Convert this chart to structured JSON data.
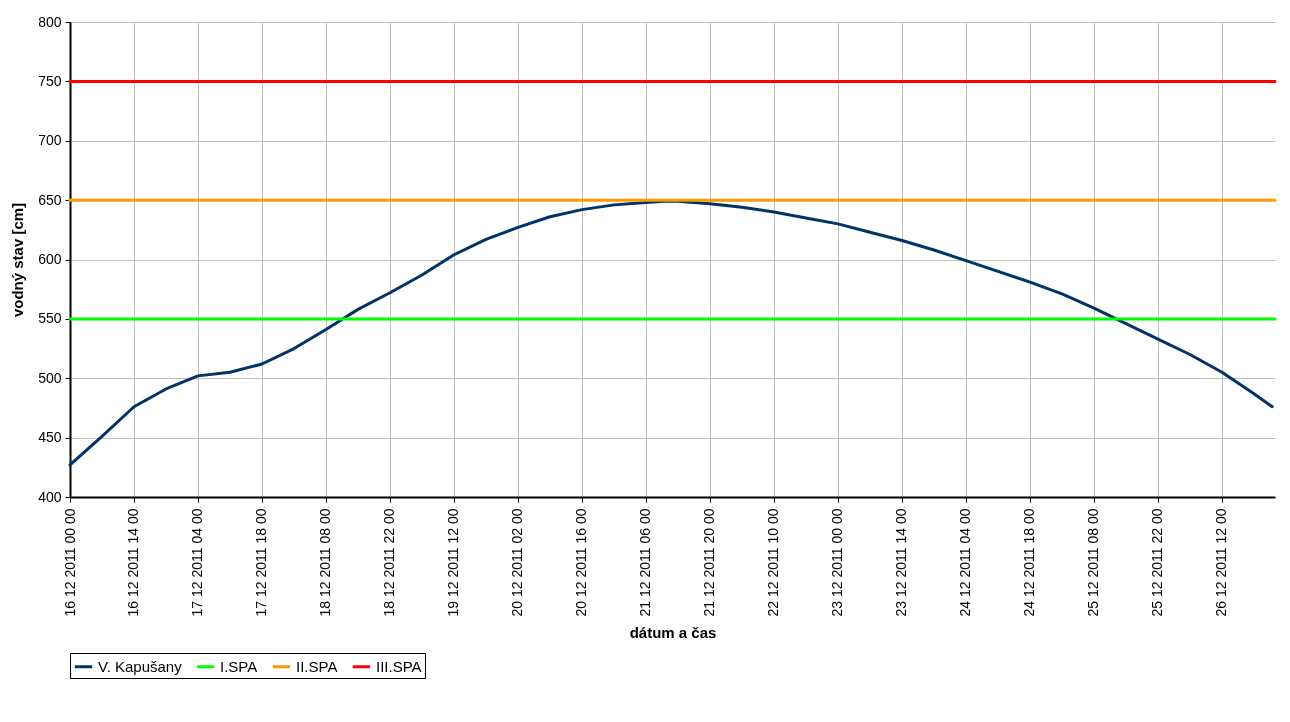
{
  "chart_data": {
    "type": "line",
    "xlabel": "dátum a čas",
    "ylabel": "vodný stav [cm]",
    "xlim": [
      "2011-12-16T00:00",
      "2011-12-26T23:36"
    ],
    "xticks": [
      {
        "value": "2011-12-16T00:00",
        "label": "16 12 2011 00 00"
      },
      {
        "value": "2011-12-16T14:00",
        "label": "16 12 2011 14 00"
      },
      {
        "value": "2011-12-17T04:00",
        "label": "17 12 2011 04 00"
      },
      {
        "value": "2011-12-17T18:00",
        "label": "17 12 2011 18 00"
      },
      {
        "value": "2011-12-18T08:00",
        "label": "18 12 2011 08 00"
      },
      {
        "value": "2011-12-18T22:00",
        "label": "18 12 2011 22 00"
      },
      {
        "value": "2011-12-19T12:00",
        "label": "19 12 2011 12 00"
      },
      {
        "value": "2011-12-20T02:00",
        "label": "20 12 2011 02 00"
      },
      {
        "value": "2011-12-20T16:00",
        "label": "20 12 2011 16 00"
      },
      {
        "value": "2011-12-21T06:00",
        "label": "21 12 2011 06 00"
      },
      {
        "value": "2011-12-21T20:00",
        "label": "21 12 2011 20 00"
      },
      {
        "value": "2011-12-22T10:00",
        "label": "22 12 2011 10 00"
      },
      {
        "value": "2011-12-23T00:00",
        "label": "23 12 2011 00 00"
      },
      {
        "value": "2011-12-23T14:00",
        "label": "23 12 2011 14 00"
      },
      {
        "value": "2011-12-24T04:00",
        "label": "24 12 2011 04 00"
      },
      {
        "value": "2011-12-24T18:00",
        "label": "24 12 2011 18 00"
      },
      {
        "value": "2011-12-25T08:00",
        "label": "25 12 2011 08 00"
      },
      {
        "value": "2011-12-25T22:00",
        "label": "25 12 2011 22 00"
      },
      {
        "value": "2011-12-26T12:00",
        "label": "26 12 2011 12 00"
      }
    ],
    "ylim": [
      400,
      800
    ],
    "yticks": [
      400,
      450,
      500,
      550,
      600,
      650,
      700,
      750,
      800
    ],
    "grid": true,
    "legend": "bottom",
    "series": [
      {
        "name": "V. Kapušany",
        "color": "#003366",
        "x": [
          "2011-12-16T00:00",
          "2011-12-16T07:00",
          "2011-12-16T14:00",
          "2011-12-16T21:00",
          "2011-12-17T04:00",
          "2011-12-17T11:00",
          "2011-12-17T18:00",
          "2011-12-18T01:00",
          "2011-12-18T08:00",
          "2011-12-18T15:00",
          "2011-12-18T22:00",
          "2011-12-19T05:00",
          "2011-12-19T12:00",
          "2011-12-19T19:00",
          "2011-12-20T02:00",
          "2011-12-20T09:00",
          "2011-12-20T16:00",
          "2011-12-20T23:00",
          "2011-12-21T06:00",
          "2011-12-21T10:00",
          "2011-12-21T13:00",
          "2011-12-21T20:00",
          "2011-12-22T03:00",
          "2011-12-22T10:00",
          "2011-12-22T17:00",
          "2011-12-23T00:00",
          "2011-12-23T07:00",
          "2011-12-23T14:00",
          "2011-12-23T21:00",
          "2011-12-24T04:00",
          "2011-12-24T11:00",
          "2011-12-24T18:00",
          "2011-12-25T01:00",
          "2011-12-25T08:00",
          "2011-12-25T15:00",
          "2011-12-25T22:00",
          "2011-12-26T05:00",
          "2011-12-26T12:00",
          "2011-12-26T19:00",
          "2011-12-26T23:00"
        ],
        "values": [
          427,
          451,
          476,
          491,
          502,
          505,
          512,
          525,
          541,
          558,
          572,
          587,
          604,
          617,
          627,
          636,
          642,
          646,
          648,
          649,
          649,
          647,
          644,
          640,
          635,
          630,
          623,
          616,
          608,
          599,
          590,
          581,
          571,
          559,
          546,
          533,
          520,
          505,
          487,
          476
        ]
      },
      {
        "name": "I.SPA",
        "color": "#00ff00",
        "x": [
          "2011-12-16T00:00",
          "2011-12-26T23:36"
        ],
        "values": [
          550,
          550
        ]
      },
      {
        "name": "II.SPA",
        "color": "#ff9900",
        "x": [
          "2011-12-16T00:00",
          "2011-12-26T23:36"
        ],
        "values": [
          650,
          650
        ]
      },
      {
        "name": "III.SPA",
        "color": "#ff0000",
        "x": [
          "2011-12-16T00:00",
          "2011-12-26T23:36"
        ],
        "values": [
          750,
          750
        ]
      }
    ]
  }
}
